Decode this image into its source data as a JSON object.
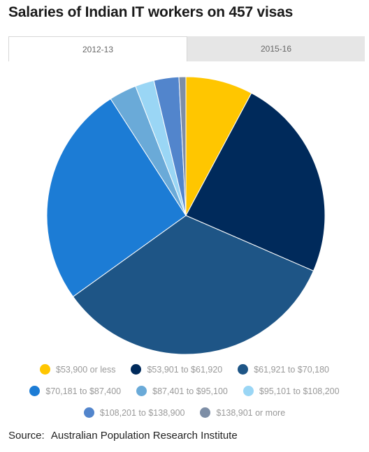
{
  "title": "Salaries of Indian IT workers on 457 visas",
  "tabs": [
    {
      "label": "2012-13",
      "active": true
    },
    {
      "label": "2015-16",
      "active": false
    }
  ],
  "chart_data": {
    "type": "pie",
    "categories": [
      "$53,900 or less",
      "$53,901 to $61,920",
      "$61,921 to $70,180",
      "$70,181 to $87,400",
      "$87,401 to $95,100",
      "$95,101 to $108,200",
      "$108,201 to $138,900",
      "$138,901 or more"
    ],
    "values": [
      7.8,
      23.7,
      33.5,
      25.8,
      3.2,
      2.2,
      2.9,
      0.8
    ],
    "colors": [
      "#ffc600",
      "#002a5b",
      "#1e5586",
      "#1c7cd5",
      "#6aaad8",
      "#9ad6f5",
      "#5285cc",
      "#7d8ea6"
    ],
    "legend_position": "bottom"
  },
  "source": {
    "label": "Source:",
    "text": "Australian Population Research Institute"
  }
}
